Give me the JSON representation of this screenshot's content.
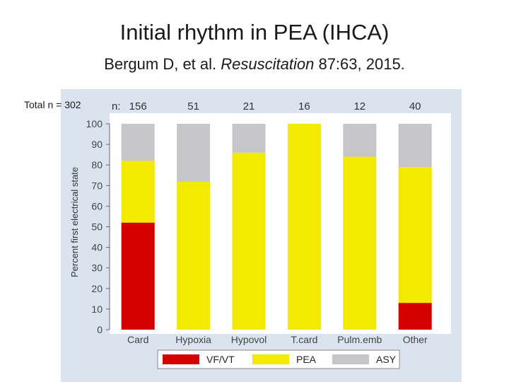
{
  "slide": {
    "title": "Initial rhythm in PEA (IHCA)",
    "citation_authors": "Bergum D, et al. ",
    "citation_journal": "Resuscitation",
    "citation_rest": "  87:63, 2015.",
    "total_n": "Total n = 302"
  },
  "chart_data": {
    "type": "bar",
    "stacked": true,
    "ylabel": "Percent first electrical state",
    "xlabel": "",
    "ylim": [
      0,
      100
    ],
    "yticks": [
      0,
      10,
      20,
      30,
      40,
      50,
      60,
      70,
      80,
      90,
      100
    ],
    "categories": [
      "Card",
      "Hypoxia",
      "Hypovol",
      "T.card",
      "Pulm.emb",
      "Other"
    ],
    "n_label": "n:",
    "n_values": [
      "156",
      "51",
      "21",
      "16",
      "12",
      "40"
    ],
    "series": [
      {
        "name": "VF/VT",
        "color": "#d40000",
        "values": [
          52,
          0,
          0,
          0,
          0,
          13
        ]
      },
      {
        "name": "PEA",
        "color": "#f2ea00",
        "values": [
          30,
          72,
          86,
          100,
          84,
          66
        ]
      },
      {
        "name": "ASY",
        "color": "#c6c5ca",
        "values": [
          18,
          28,
          14,
          0,
          16,
          21
        ]
      }
    ],
    "legend_position": "bottom",
    "grid": false,
    "plot_background": "#dbe4ee"
  }
}
